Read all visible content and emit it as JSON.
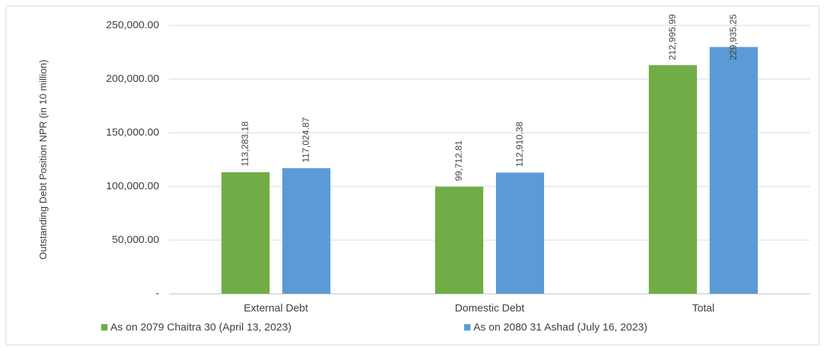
{
  "chart_data": {
    "type": "bar",
    "y_label": "Outstanding Debt Position NPR (in 10 million)",
    "categories": [
      "External Debt",
      "Domestic Debt",
      "Total"
    ],
    "series": [
      {
        "name": "As on 2079 Chaitra 30 (April 13, 2023)",
        "color": "#70ad47",
        "values": [
          113283.18,
          99712.81,
          212995.99
        ],
        "value_labels": [
          "113,283.18",
          "99,712.81",
          "212,995.99"
        ]
      },
      {
        "name": "As on 2080 31 Ashad (July 16, 2023)",
        "color": "#5b9bd5",
        "values": [
          117024.87,
          112910.38,
          229935.25
        ],
        "value_labels": [
          "117,024.87",
          "112,910.38",
          "229,935.25"
        ]
      }
    ],
    "ylim": [
      0,
      250000
    ],
    "yticks": [
      {
        "value": 0,
        "label": "-"
      },
      {
        "value": 50000,
        "label": "50,000.00"
      },
      {
        "value": 100000,
        "label": "100,000.00"
      },
      {
        "value": 150000,
        "label": "150,000.00"
      },
      {
        "value": 200000,
        "label": "200,000.00"
      },
      {
        "value": 250000,
        "label": "250,000.00"
      }
    ],
    "grid": true,
    "legend": "bottom"
  }
}
